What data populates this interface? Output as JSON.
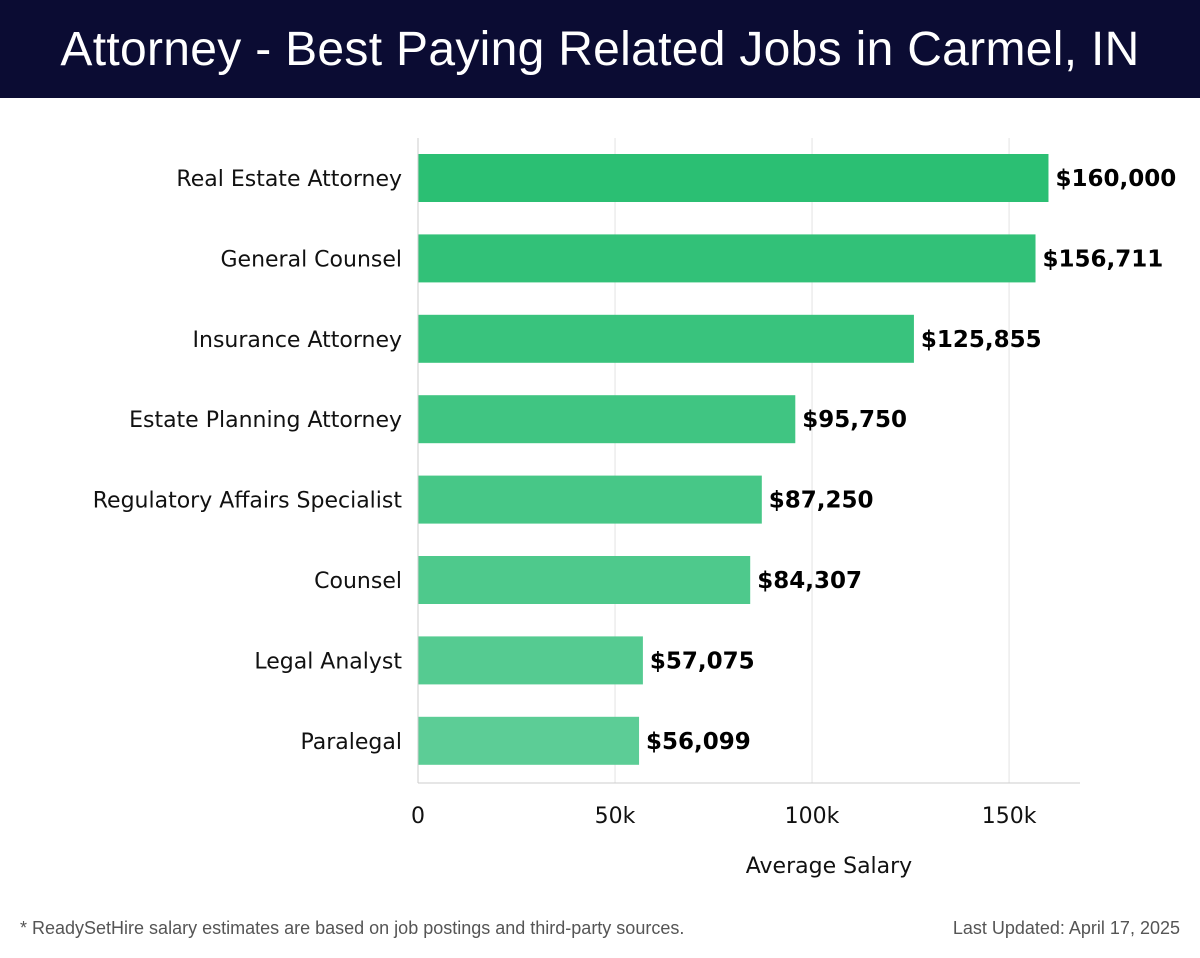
{
  "header": {
    "title": "Attorney - Best Paying Related Jobs in Carmel, IN"
  },
  "footer": {
    "note": "* ReadySetHire salary estimates are based on job postings and third-party sources.",
    "updated": "Last Updated: April 17, 2025"
  },
  "colors": {
    "header_bg": "#0b0c33",
    "bar_dark": "#2bbf73",
    "bar_light": "#5ccd96"
  },
  "chart_data": {
    "type": "bar",
    "orientation": "horizontal",
    "title": "Attorney - Best Paying Related Jobs in Carmel, IN",
    "xlabel": "Average Salary",
    "ylabel": "",
    "xlim": [
      0,
      168000
    ],
    "xticks": [
      0,
      50000,
      100000,
      150000
    ],
    "xtick_labels": [
      "0",
      "50k",
      "100k",
      "150k"
    ],
    "grid": true,
    "categories": [
      "Real Estate Attorney",
      "General Counsel",
      "Insurance Attorney",
      "Estate Planning Attorney",
      "Regulatory Affairs Specialist",
      "Counsel",
      "Legal Analyst",
      "Paralegal"
    ],
    "values": [
      160000,
      156711,
      125855,
      95750,
      87250,
      84307,
      57075,
      56099
    ],
    "value_labels": [
      "$160,000",
      "$156,711",
      "$125,855",
      "$95,750",
      "$87,250",
      "$84,307",
      "$57,075",
      "$56,099"
    ]
  }
}
